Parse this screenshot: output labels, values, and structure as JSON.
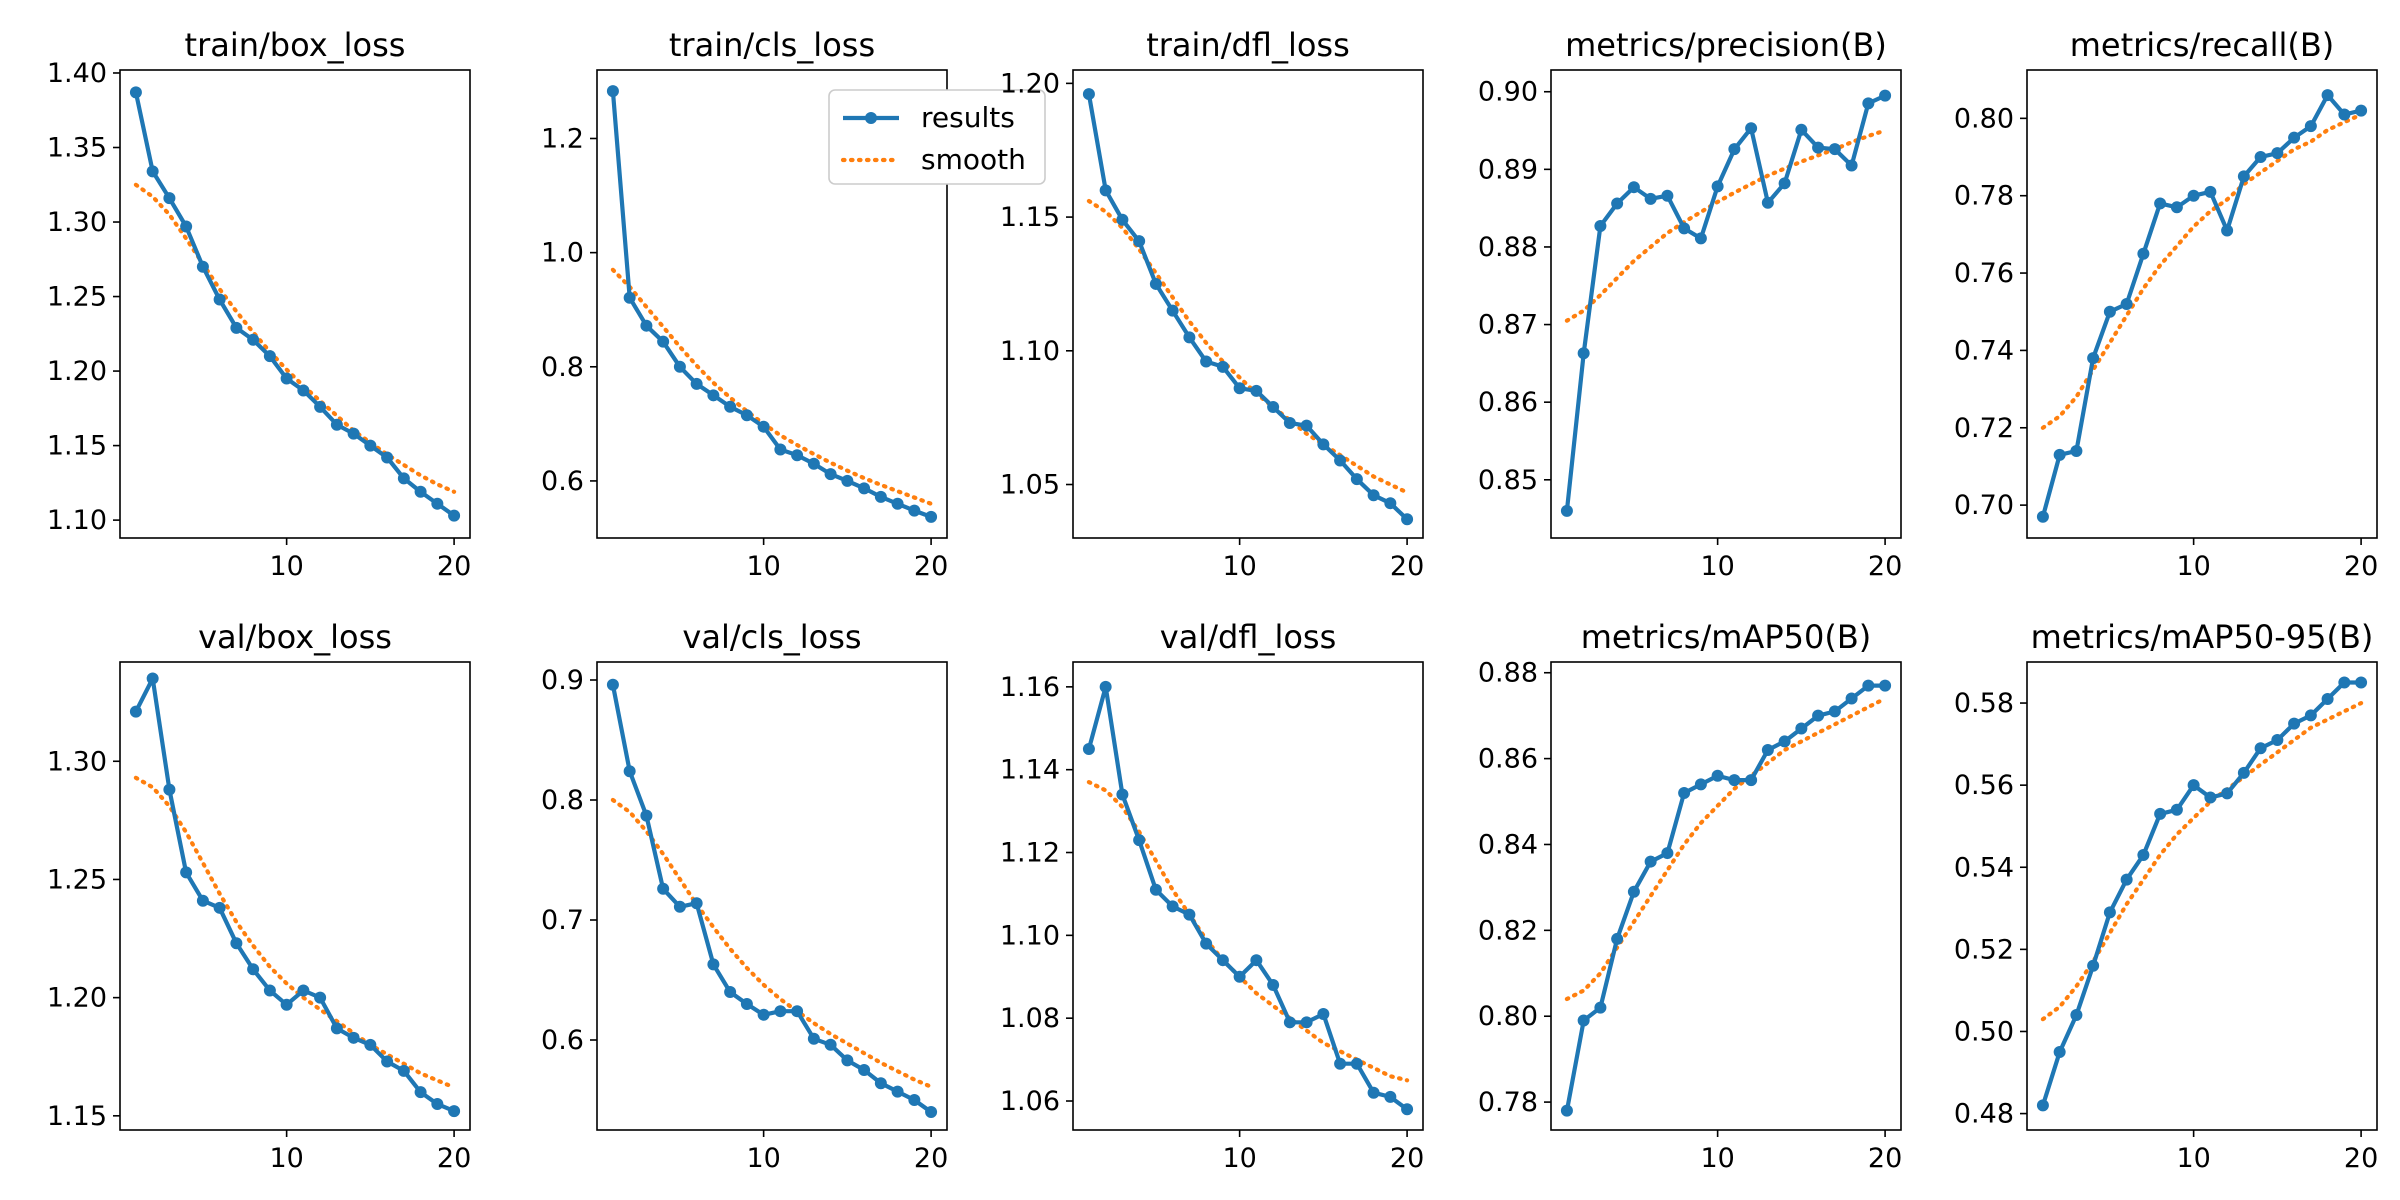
{
  "legend": {
    "results": "results",
    "smooth": "smooth"
  },
  "colors": {
    "results": "#1f77b4",
    "smooth": "#ff7f0e"
  },
  "chart_data": [
    {
      "type": "line",
      "title": "train/box_loss",
      "x": [
        1,
        2,
        3,
        4,
        5,
        6,
        7,
        8,
        9,
        10,
        11,
        12,
        13,
        14,
        15,
        16,
        17,
        18,
        19,
        20
      ],
      "xticks": [
        10,
        20
      ],
      "ylim": [
        1.088,
        1.402
      ],
      "yticks": [
        1.1,
        1.15,
        1.2,
        1.25,
        1.3,
        1.35,
        1.4
      ],
      "ytick_labels": [
        "1.10",
        "1.15",
        "1.20",
        "1.25",
        "1.30",
        "1.35",
        "1.40"
      ],
      "legend": false,
      "series": [
        {
          "name": "results",
          "style": "solid-markers",
          "values": [
            1.387,
            1.334,
            1.316,
            1.297,
            1.27,
            1.248,
            1.229,
            1.221,
            1.21,
            1.195,
            1.187,
            1.176,
            1.164,
            1.158,
            1.15,
            1.142,
            1.128,
            1.119,
            1.111,
            1.103
          ]
        },
        {
          "name": "smooth",
          "style": "dotted",
          "values": [
            1.325,
            1.317,
            1.305,
            1.289,
            1.272,
            1.255,
            1.24,
            1.226,
            1.213,
            1.201,
            1.19,
            1.18,
            1.17,
            1.16,
            1.152,
            1.144,
            1.137,
            1.13,
            1.124,
            1.119
          ]
        }
      ]
    },
    {
      "type": "line",
      "title": "train/cls_loss",
      "x": [
        1,
        2,
        3,
        4,
        5,
        6,
        7,
        8,
        9,
        10,
        11,
        12,
        13,
        14,
        15,
        16,
        17,
        18,
        19,
        20
      ],
      "xticks": [
        10,
        20
      ],
      "ylim": [
        0.5,
        1.32
      ],
      "yticks": [
        0.6,
        0.8,
        1.0,
        1.2
      ],
      "ytick_labels": [
        "0.6",
        "0.8",
        "1.0",
        "1.2"
      ],
      "legend": true,
      "series": [
        {
          "name": "results",
          "style": "solid-markers",
          "values": [
            1.283,
            0.921,
            0.872,
            0.844,
            0.8,
            0.77,
            0.75,
            0.73,
            0.715,
            0.695,
            0.655,
            0.645,
            0.63,
            0.612,
            0.6,
            0.587,
            0.572,
            0.56,
            0.548,
            0.537
          ]
        },
        {
          "name": "smooth",
          "style": "dotted",
          "values": [
            0.97,
            0.94,
            0.905,
            0.87,
            0.835,
            0.802,
            0.772,
            0.746,
            0.722,
            0.7,
            0.68,
            0.663,
            0.647,
            0.632,
            0.618,
            0.605,
            0.593,
            0.582,
            0.571,
            0.56
          ]
        }
      ]
    },
    {
      "type": "line",
      "title": "train/dfl_loss",
      "x": [
        1,
        2,
        3,
        4,
        5,
        6,
        7,
        8,
        9,
        10,
        11,
        12,
        13,
        14,
        15,
        16,
        17,
        18,
        19,
        20
      ],
      "xticks": [
        10,
        20
      ],
      "ylim": [
        1.03,
        1.205
      ],
      "yticks": [
        1.05,
        1.1,
        1.15,
        1.2
      ],
      "ytick_labels": [
        "1.05",
        "1.10",
        "1.15",
        "1.20"
      ],
      "legend": false,
      "series": [
        {
          "name": "results",
          "style": "solid-markers",
          "values": [
            1.196,
            1.16,
            1.149,
            1.141,
            1.125,
            1.115,
            1.105,
            1.096,
            1.094,
            1.086,
            1.085,
            1.079,
            1.073,
            1.072,
            1.065,
            1.059,
            1.052,
            1.046,
            1.043,
            1.037
          ]
        },
        {
          "name": "smooth",
          "style": "dotted",
          "values": [
            1.156,
            1.152,
            1.146,
            1.138,
            1.129,
            1.12,
            1.111,
            1.103,
            1.096,
            1.09,
            1.084,
            1.079,
            1.074,
            1.069,
            1.065,
            1.061,
            1.057,
            1.053,
            1.05,
            1.047
          ]
        }
      ]
    },
    {
      "type": "line",
      "title": "metrics/precision(B)",
      "x": [
        1,
        2,
        3,
        4,
        5,
        6,
        7,
        8,
        9,
        10,
        11,
        12,
        13,
        14,
        15,
        16,
        17,
        18,
        19,
        20
      ],
      "xticks": [
        10,
        20
      ],
      "ylim": [
        0.8425,
        0.9028
      ],
      "yticks": [
        0.85,
        0.86,
        0.87,
        0.88,
        0.89,
        0.9
      ],
      "ytick_labels": [
        "0.85",
        "0.86",
        "0.87",
        "0.88",
        "0.89",
        "0.90"
      ],
      "legend": false,
      "series": [
        {
          "name": "results",
          "style": "solid-markers",
          "values": [
            0.846,
            0.8663,
            0.8827,
            0.8856,
            0.8877,
            0.8862,
            0.8866,
            0.8824,
            0.8811,
            0.8878,
            0.8926,
            0.8953,
            0.8857,
            0.8882,
            0.8951,
            0.8928,
            0.8926,
            0.8905,
            0.8985,
            0.8995
          ]
        },
        {
          "name": "smooth",
          "style": "dotted",
          "values": [
            0.8705,
            0.8718,
            0.8738,
            0.876,
            0.8782,
            0.88,
            0.8818,
            0.8832,
            0.8845,
            0.8858,
            0.887,
            0.8881,
            0.8892,
            0.8901,
            0.891,
            0.8918,
            0.8926,
            0.8935,
            0.8943,
            0.895
          ]
        }
      ]
    },
    {
      "type": "line",
      "title": "metrics/recall(B)",
      "x": [
        1,
        2,
        3,
        4,
        5,
        6,
        7,
        8,
        9,
        10,
        11,
        12,
        13,
        14,
        15,
        16,
        17,
        18,
        19,
        20
      ],
      "xticks": [
        10,
        20
      ],
      "ylim": [
        0.6915,
        0.8125
      ],
      "yticks": [
        0.7,
        0.72,
        0.74,
        0.76,
        0.78,
        0.8
      ],
      "ytick_labels": [
        "0.70",
        "0.72",
        "0.74",
        "0.76",
        "0.78",
        "0.80"
      ],
      "legend": false,
      "series": [
        {
          "name": "results",
          "style": "solid-markers",
          "values": [
            0.697,
            0.713,
            0.714,
            0.738,
            0.75,
            0.752,
            0.765,
            0.778,
            0.777,
            0.78,
            0.781,
            0.771,
            0.785,
            0.79,
            0.791,
            0.795,
            0.798,
            0.806,
            0.801,
            0.802
          ]
        },
        {
          "name": "smooth",
          "style": "dotted",
          "values": [
            0.72,
            0.723,
            0.728,
            0.735,
            0.742,
            0.749,
            0.756,
            0.762,
            0.767,
            0.772,
            0.776,
            0.779,
            0.783,
            0.786,
            0.789,
            0.792,
            0.794,
            0.797,
            0.799,
            0.801
          ]
        }
      ]
    },
    {
      "type": "line",
      "title": "val/box_loss",
      "x": [
        1,
        2,
        3,
        4,
        5,
        6,
        7,
        8,
        9,
        10,
        11,
        12,
        13,
        14,
        15,
        16,
        17,
        18,
        19,
        20
      ],
      "xticks": [
        10,
        20
      ],
      "ylim": [
        1.144,
        1.342
      ],
      "yticks": [
        1.15,
        1.2,
        1.25,
        1.3
      ],
      "ytick_labels": [
        "1.15",
        "1.20",
        "1.25",
        "1.30"
      ],
      "legend": false,
      "series": [
        {
          "name": "results",
          "style": "solid-markers",
          "values": [
            1.321,
            1.335,
            1.288,
            1.253,
            1.241,
            1.238,
            1.223,
            1.212,
            1.203,
            1.197,
            1.203,
            1.2,
            1.187,
            1.183,
            1.18,
            1.173,
            1.169,
            1.16,
            1.155,
            1.152
          ]
        },
        {
          "name": "smooth",
          "style": "dotted",
          "values": [
            1.293,
            1.289,
            1.281,
            1.27,
            1.257,
            1.244,
            1.232,
            1.222,
            1.213,
            1.206,
            1.2,
            1.195,
            1.19,
            1.185,
            1.18,
            1.176,
            1.172,
            1.168,
            1.165,
            1.162
          ]
        }
      ]
    },
    {
      "type": "line",
      "title": "val/cls_loss",
      "x": [
        1,
        2,
        3,
        4,
        5,
        6,
        7,
        8,
        9,
        10,
        11,
        12,
        13,
        14,
        15,
        16,
        17,
        18,
        19,
        20
      ],
      "xticks": [
        10,
        20
      ],
      "ylim": [
        0.525,
        0.915
      ],
      "yticks": [
        0.6,
        0.7,
        0.8,
        0.9
      ],
      "ytick_labels": [
        "0.6",
        "0.7",
        "0.8",
        "0.9"
      ],
      "legend": false,
      "series": [
        {
          "name": "results",
          "style": "solid-markers",
          "values": [
            0.896,
            0.824,
            0.787,
            0.726,
            0.711,
            0.714,
            0.663,
            0.64,
            0.63,
            0.621,
            0.624,
            0.624,
            0.601,
            0.596,
            0.583,
            0.575,
            0.564,
            0.557,
            0.55,
            0.54
          ]
        },
        {
          "name": "smooth",
          "style": "dotted",
          "values": [
            0.8,
            0.79,
            0.774,
            0.755,
            0.734,
            0.713,
            0.694,
            0.676,
            0.66,
            0.646,
            0.634,
            0.624,
            0.614,
            0.605,
            0.597,
            0.589,
            0.581,
            0.574,
            0.567,
            0.561
          ]
        }
      ]
    },
    {
      "type": "line",
      "title": "val/dfl_loss",
      "x": [
        1,
        2,
        3,
        4,
        5,
        6,
        7,
        8,
        9,
        10,
        11,
        12,
        13,
        14,
        15,
        16,
        17,
        18,
        19,
        20
      ],
      "xticks": [
        10,
        20
      ],
      "ylim": [
        1.053,
        1.166
      ],
      "yticks": [
        1.06,
        1.08,
        1.1,
        1.12,
        1.14,
        1.16
      ],
      "ytick_labels": [
        "1.06",
        "1.08",
        "1.10",
        "1.12",
        "1.14",
        "1.16"
      ],
      "legend": false,
      "series": [
        {
          "name": "results",
          "style": "solid-markers",
          "values": [
            1.145,
            1.16,
            1.134,
            1.123,
            1.111,
            1.107,
            1.105,
            1.098,
            1.094,
            1.09,
            1.094,
            1.088,
            1.079,
            1.079,
            1.081,
            1.069,
            1.069,
            1.062,
            1.061,
            1.058
          ]
        },
        {
          "name": "smooth",
          "style": "dotted",
          "values": [
            1.137,
            1.135,
            1.131,
            1.125,
            1.118,
            1.111,
            1.105,
            1.099,
            1.094,
            1.09,
            1.086,
            1.083,
            1.08,
            1.077,
            1.074,
            1.072,
            1.07,
            1.068,
            1.066,
            1.065
          ]
        }
      ]
    },
    {
      "type": "line",
      "title": "metrics/mAP50(B)",
      "x": [
        1,
        2,
        3,
        4,
        5,
        6,
        7,
        8,
        9,
        10,
        11,
        12,
        13,
        14,
        15,
        16,
        17,
        18,
        19,
        20
      ],
      "xticks": [
        10,
        20
      ],
      "ylim": [
        0.7735,
        0.8825
      ],
      "yticks": [
        0.78,
        0.8,
        0.82,
        0.84,
        0.86,
        0.88
      ],
      "ytick_labels": [
        "0.78",
        "0.80",
        "0.82",
        "0.84",
        "0.86",
        "0.88"
      ],
      "legend": false,
      "series": [
        {
          "name": "results",
          "style": "solid-markers",
          "values": [
            0.778,
            0.799,
            0.802,
            0.818,
            0.829,
            0.836,
            0.838,
            0.852,
            0.854,
            0.856,
            0.855,
            0.855,
            0.862,
            0.864,
            0.867,
            0.87,
            0.871,
            0.874,
            0.877,
            0.877
          ]
        },
        {
          "name": "smooth",
          "style": "dotted",
          "values": [
            0.804,
            0.806,
            0.81,
            0.816,
            0.822,
            0.828,
            0.834,
            0.84,
            0.845,
            0.849,
            0.853,
            0.856,
            0.859,
            0.862,
            0.864,
            0.866,
            0.868,
            0.87,
            0.872,
            0.874
          ]
        }
      ]
    },
    {
      "type": "line",
      "title": "metrics/mAP50-95(B)",
      "x": [
        1,
        2,
        3,
        4,
        5,
        6,
        7,
        8,
        9,
        10,
        11,
        12,
        13,
        14,
        15,
        16,
        17,
        18,
        19,
        20
      ],
      "xticks": [
        10,
        20
      ],
      "ylim": [
        0.476,
        0.59
      ],
      "yticks": [
        0.48,
        0.5,
        0.52,
        0.54,
        0.56,
        0.58
      ],
      "ytick_labels": [
        "0.48",
        "0.50",
        "0.52",
        "0.54",
        "0.56",
        "0.58"
      ],
      "legend": false,
      "series": [
        {
          "name": "results",
          "style": "solid-markers",
          "values": [
            0.482,
            0.495,
            0.504,
            0.516,
            0.529,
            0.537,
            0.543,
            0.553,
            0.554,
            0.56,
            0.557,
            0.558,
            0.563,
            0.569,
            0.571,
            0.575,
            0.577,
            0.581,
            0.585,
            0.585
          ]
        },
        {
          "name": "smooth",
          "style": "dotted",
          "values": [
            0.503,
            0.506,
            0.511,
            0.517,
            0.524,
            0.531,
            0.537,
            0.543,
            0.548,
            0.552,
            0.556,
            0.559,
            0.562,
            0.565,
            0.568,
            0.571,
            0.574,
            0.576,
            0.578,
            0.58
          ]
        }
      ]
    }
  ]
}
